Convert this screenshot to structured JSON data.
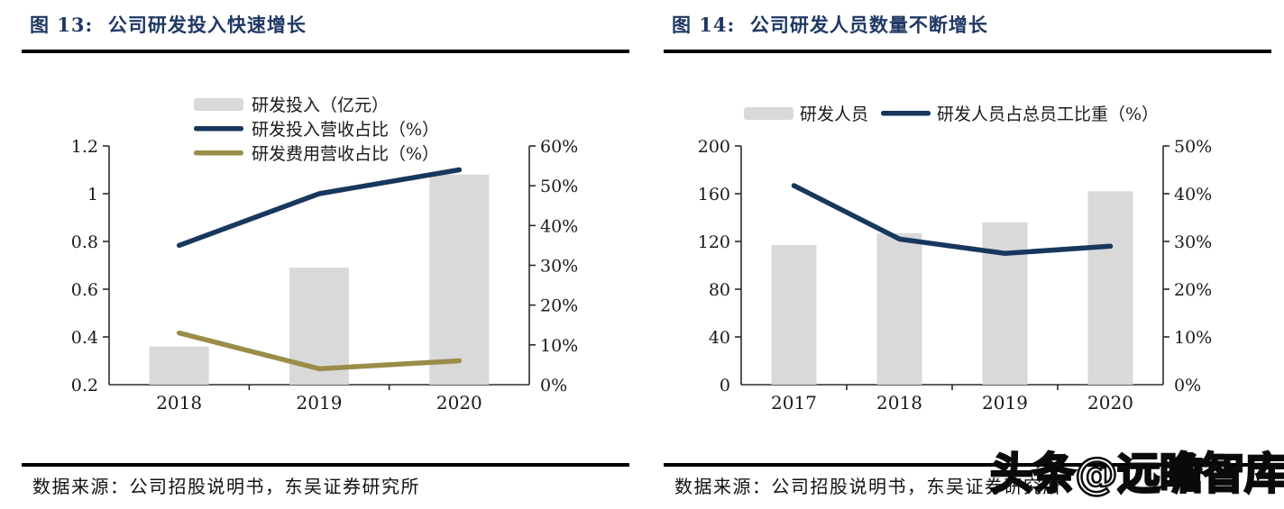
{
  "page": {
    "background": "#ffffff"
  },
  "left_panel": {
    "title": "图 13:  公司研发投入快速增长",
    "source": "数据来源：公司招股说明书，东吴证券研究所"
  },
  "right_panel": {
    "title": "图 14:  公司研发人员数量不断增长",
    "source": "数据来源：公司招股说明书，东吴证券研究所"
  },
  "watermark": {
    "text": "头条@远瞻智库"
  },
  "colors": {
    "title_navy": "#1f3864",
    "bar_gray": "#d9d9d9",
    "line_navy": "#17375e",
    "line_olive": "#9a8d49",
    "rule_black": "#000000"
  },
  "chart_data": [
    {
      "id": "chart13",
      "type": "bar",
      "title": "公司研发投入快速增长",
      "categories": [
        "2018",
        "2019",
        "2020"
      ],
      "series": [
        {
          "name": "研发投入（亿元）",
          "type": "bar",
          "axis": "left",
          "color": "#d9d9d9",
          "values": [
            0.36,
            0.69,
            1.08
          ]
        },
        {
          "name": "研发投入营收占比（%）",
          "type": "line",
          "axis": "right",
          "color": "#17375e",
          "values": [
            35,
            48,
            54
          ]
        },
        {
          "name": "研发费用营收占比（%）",
          "type": "line",
          "axis": "right",
          "color": "#9a8d49",
          "values": [
            13,
            4,
            6
          ]
        }
      ],
      "left_axis": {
        "min": 0.2,
        "max": 1.2,
        "step": 0.2,
        "labels": [
          "0.2",
          "0.4",
          "0.6",
          "0.8",
          "1",
          "1.2"
        ]
      },
      "right_axis": {
        "min": 0,
        "max": 60,
        "step": 10,
        "labels": [
          "0%",
          "10%",
          "20%",
          "30%",
          "40%",
          "50%",
          "60%"
        ]
      },
      "legend_position": "top-stacked",
      "grid": false
    },
    {
      "id": "chart14",
      "type": "bar",
      "title": "公司研发人员数量不断增长",
      "categories": [
        "2017",
        "2018",
        "2019",
        "2020"
      ],
      "series": [
        {
          "name": "研发人员",
          "type": "bar",
          "axis": "left",
          "color": "#d9d9d9",
          "values": [
            117,
            127,
            136,
            162
          ]
        },
        {
          "name": "研发人员占总员工比重（%）",
          "type": "line",
          "axis": "right",
          "color": "#17375e",
          "values": [
            41.7,
            30.5,
            27.5,
            29
          ]
        }
      ],
      "left_axis": {
        "min": 0,
        "max": 200,
        "step": 40,
        "labels": [
          "0",
          "40",
          "80",
          "120",
          "160",
          "200"
        ]
      },
      "right_axis": {
        "min": 0,
        "max": 50,
        "step": 10,
        "labels": [
          "0%",
          "10%",
          "20%",
          "30%",
          "40%",
          "50%"
        ]
      },
      "legend_position": "top-inline",
      "grid": false
    }
  ]
}
